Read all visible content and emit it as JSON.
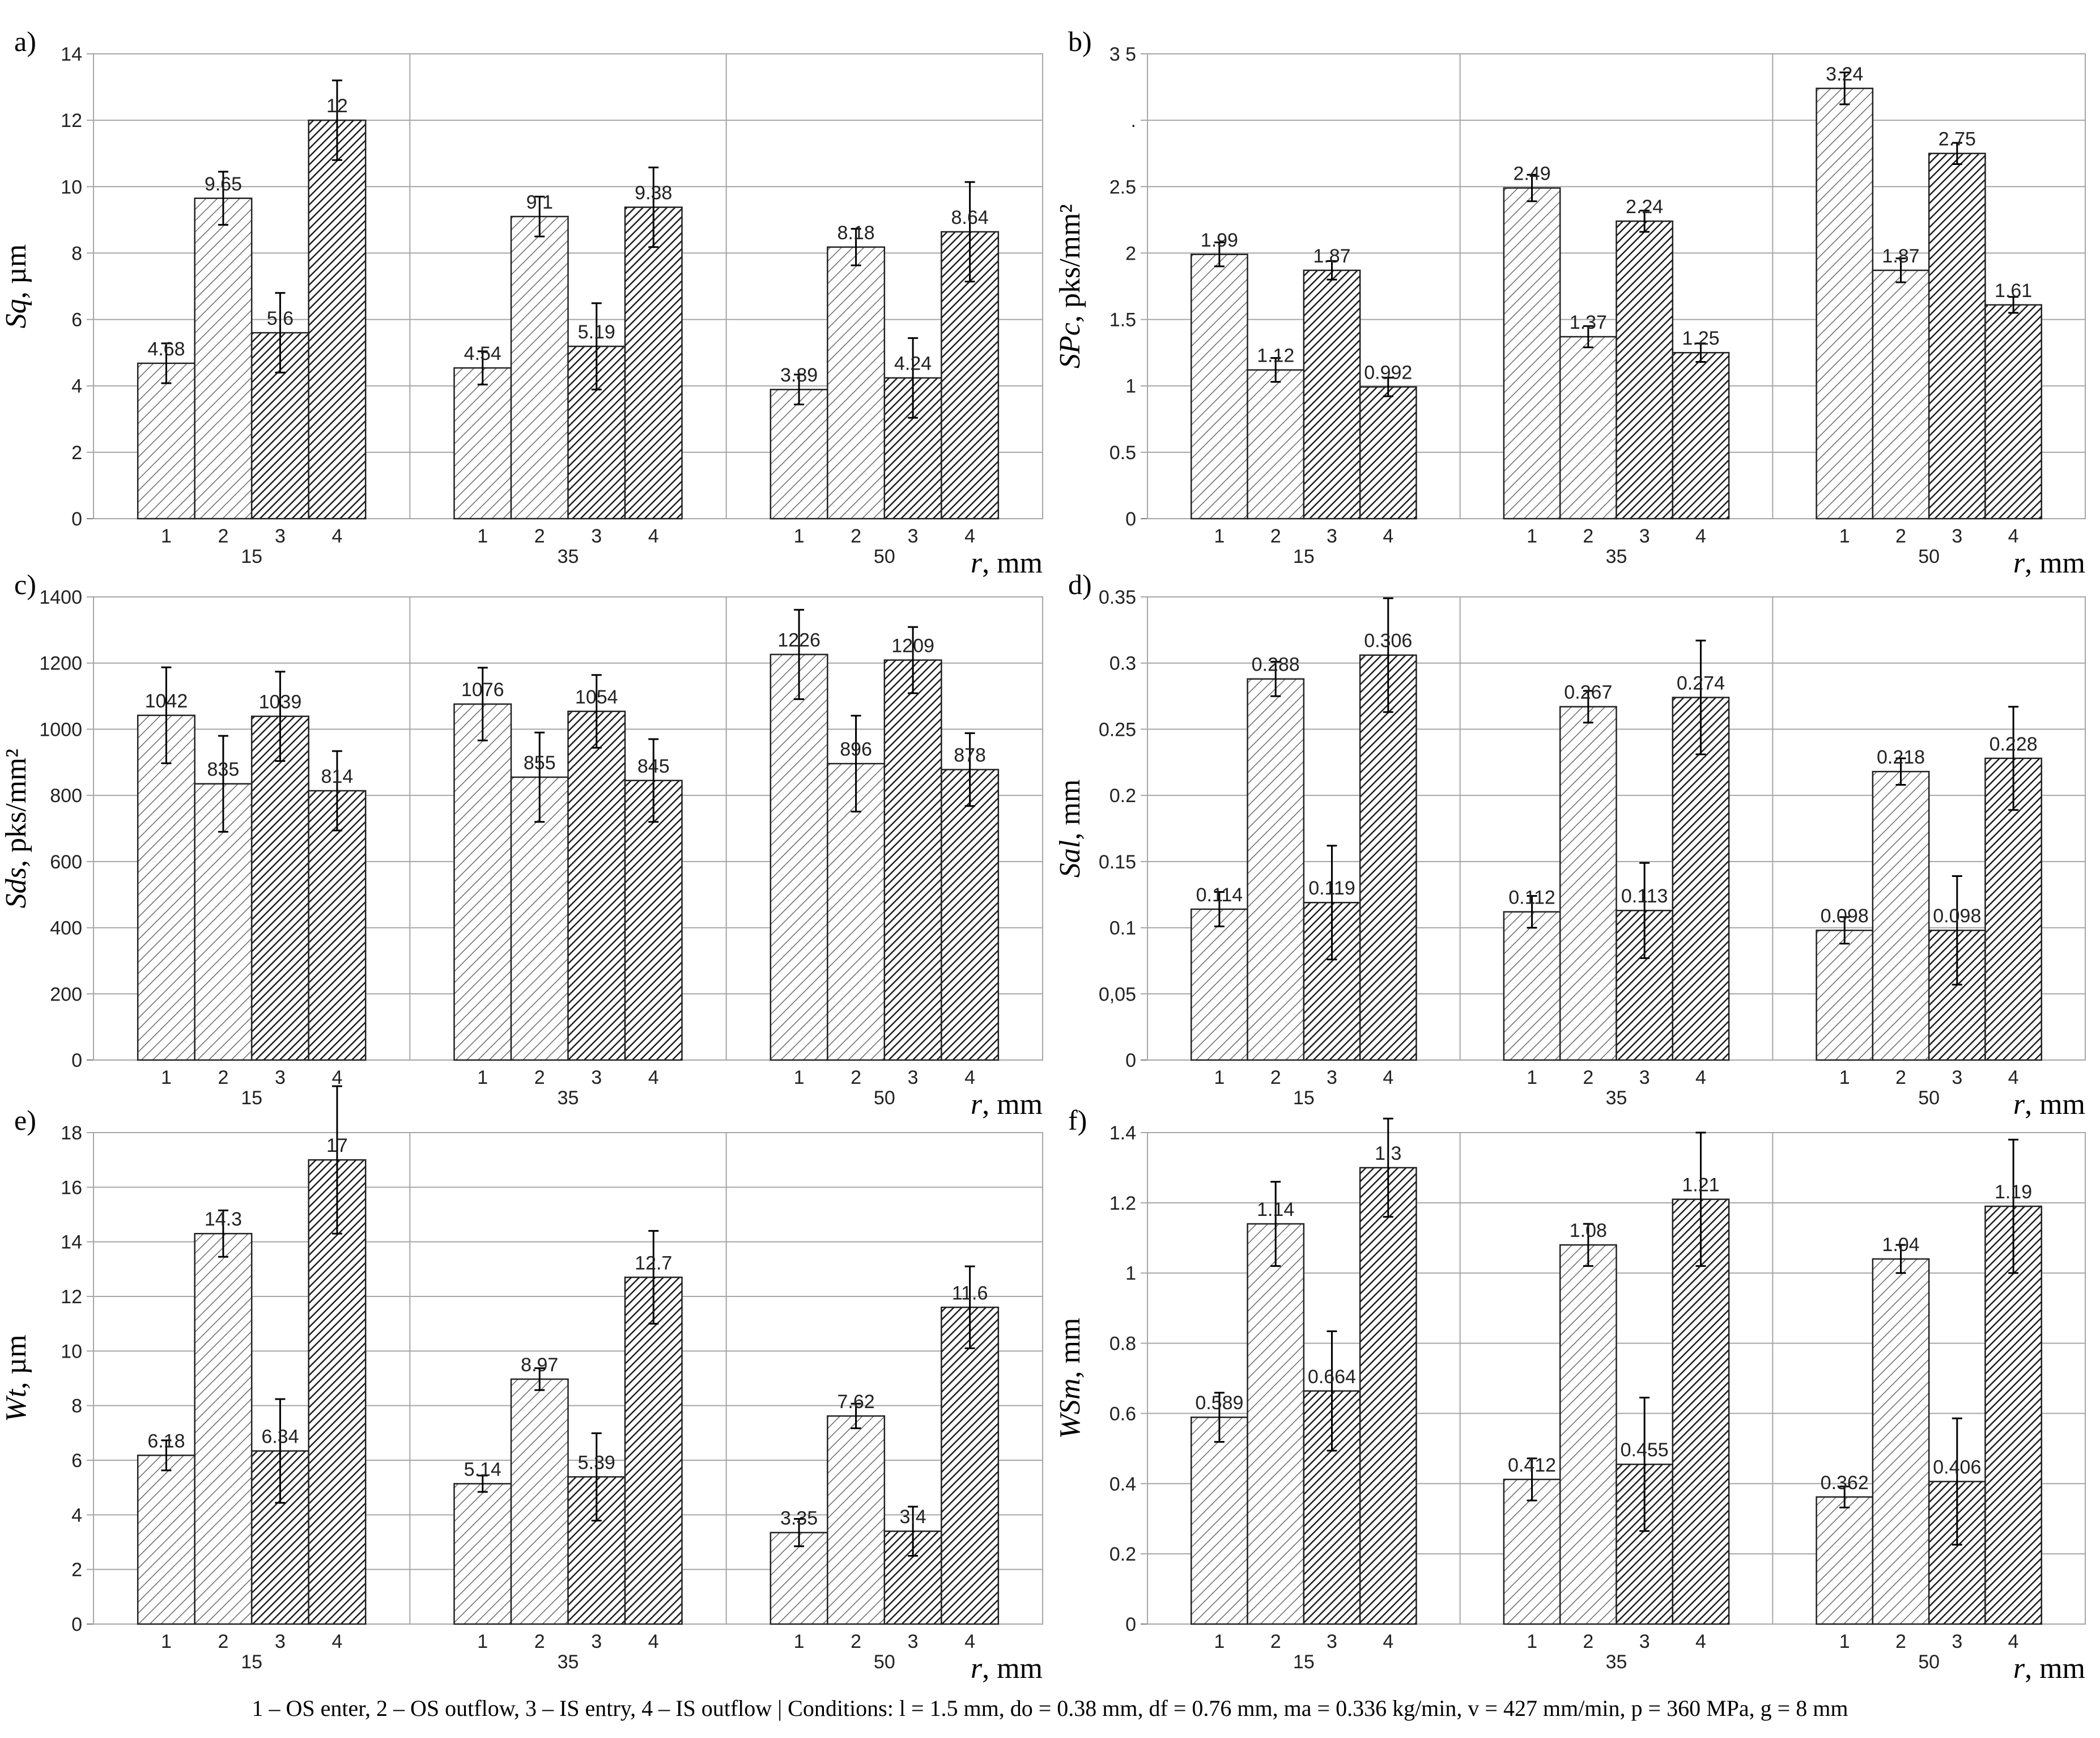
{
  "caption": "1 – OS enter, 2 – OS outflow, 3 – IS entry, 4 – IS outflow | Conditions: l = 1.5 mm, do = 0.38 mm, df = 0.76 mm, ma = 0.336 kg/min,  v = 427 mm/min, p = 360 MPa, g = 8 mm",
  "colors": {
    "bar_fill": "#ffffff",
    "bar_stroke": "#222222",
    "grid": "#a6a6a6",
    "axis": "#808080",
    "hatch_light": "#6a6a6a",
    "hatch_dark": "#1e1e1e"
  },
  "chart_data": [
    {
      "panel": "a)",
      "type": "bar",
      "ylabel_italic": "Sq",
      "ylabel_rest": ", µm",
      "xlabel_italic": "r",
      "xlabel_rest": ", mm",
      "groups": [
        "15",
        "35",
        "50"
      ],
      "categories": [
        "1",
        "2",
        "3",
        "4"
      ],
      "yticks": [
        "0",
        "2",
        "4",
        "6",
        "8",
        "10",
        "12",
        "14"
      ],
      "ylim": [
        0,
        14
      ],
      "values": [
        [
          4.68,
          9.65,
          5.6,
          12
        ],
        [
          4.54,
          9.1,
          5.19,
          9.38
        ],
        [
          3.89,
          8.18,
          4.24,
          8.64
        ]
      ],
      "labels": [
        [
          "4.68",
          "9.65",
          "5.6",
          "12"
        ],
        [
          "4.54",
          "9.1",
          "5.19",
          "9.38"
        ],
        [
          "3.89",
          "8.18",
          "4.24",
          "8.64"
        ]
      ],
      "errors": [
        [
          0.6,
          0.8,
          1.2,
          1.2
        ],
        [
          0.5,
          0.6,
          1.3,
          1.2
        ],
        [
          0.45,
          0.55,
          1.2,
          1.5
        ]
      ]
    },
    {
      "panel": "b)",
      "type": "bar",
      "ylabel_italic": "SPc",
      "ylabel_rest": ", pks/mm²",
      "xlabel_italic": "r",
      "xlabel_rest": ", mm",
      "groups": [
        "15",
        "35",
        "50"
      ],
      "categories": [
        "1",
        "2",
        "3",
        "4"
      ],
      "yticks": [
        "0",
        "0.5",
        "1",
        "1.5",
        "2",
        "2.5",
        ".",
        "3 5"
      ],
      "ylim": [
        0,
        3.5
      ],
      "values": [
        [
          1.99,
          1.12,
          1.87,
          0.992
        ],
        [
          2.49,
          1.37,
          2.24,
          1.25
        ],
        [
          3.24,
          1.87,
          2.75,
          1.61
        ]
      ],
      "labels": [
        [
          "1.99",
          "1.12",
          "1.87",
          "0.992"
        ],
        [
          "2.49",
          "1.37",
          "2.24",
          "1.25"
        ],
        [
          "3.24",
          "1.87",
          "2.75",
          "1.61"
        ]
      ],
      "errors": [
        [
          0.09,
          0.09,
          0.07,
          0.07
        ],
        [
          0.1,
          0.08,
          0.08,
          0.07
        ],
        [
          0.12,
          0.09,
          0.08,
          0.06
        ]
      ]
    },
    {
      "panel": "c)",
      "type": "bar",
      "ylabel_italic": "Sds",
      "ylabel_rest": ", pks/mm²",
      "xlabel_italic": "r",
      "xlabel_rest": ", mm",
      "groups": [
        "15",
        "35",
        "50"
      ],
      "categories": [
        "1",
        "2",
        "3",
        "4"
      ],
      "yticks": [
        "0",
        "200",
        "400",
        "600",
        "800",
        "1000",
        "1200",
        "1400"
      ],
      "ylim": [
        0,
        1400
      ],
      "values": [
        [
          1042,
          835,
          1039,
          814
        ],
        [
          1076,
          855,
          1054,
          845
        ],
        [
          1226,
          896,
          1209,
          878
        ]
      ],
      "labels": [
        [
          "1042",
          "835",
          "1039",
          "814"
        ],
        [
          "1076",
          "855",
          "1054",
          "845"
        ],
        [
          "1226",
          "896",
          "1209",
          "878"
        ]
      ],
      "errors": [
        [
          145,
          145,
          135,
          120
        ],
        [
          110,
          135,
          110,
          125
        ],
        [
          135,
          145,
          100,
          110
        ]
      ]
    },
    {
      "panel": "d)",
      "type": "bar",
      "ylabel_italic": "Sal",
      "ylabel_rest": ", mm",
      "xlabel_italic": "r",
      "xlabel_rest": ", mm",
      "groups": [
        "15",
        "35",
        "50"
      ],
      "categories": [
        "1",
        "2",
        "3",
        "4"
      ],
      "yticks": [
        "0",
        "0,05",
        "0.1",
        "0.15",
        "0.2",
        "0.25",
        "0.3",
        "0.35"
      ],
      "ylim": [
        0,
        0.35
      ],
      "values": [
        [
          0.114,
          0.288,
          0.119,
          0.306
        ],
        [
          0.112,
          0.267,
          0.113,
          0.274
        ],
        [
          0.098,
          0.218,
          0.098,
          0.228
        ]
      ],
      "labels": [
        [
          "0.114",
          "0.288",
          "0.119",
          "0.306"
        ],
        [
          "0.112",
          "0.267",
          "0.113",
          "0.274"
        ],
        [
          "0.098",
          "0.218",
          "0.098",
          "0.228"
        ]
      ],
      "errors": [
        [
          0.013,
          0.013,
          0.043,
          0.043
        ],
        [
          0.012,
          0.012,
          0.036,
          0.043
        ],
        [
          0.01,
          0.01,
          0.041,
          0.039
        ]
      ]
    },
    {
      "panel": "e)",
      "type": "bar",
      "ylabel_italic": "Wt",
      "ylabel_rest": ", µm",
      "xlabel_italic": "r",
      "xlabel_rest": ", mm",
      "groups": [
        "15",
        "35",
        "50"
      ],
      "categories": [
        "1",
        "2",
        "3",
        "4"
      ],
      "yticks": [
        "0",
        "2",
        "4",
        "6",
        "8",
        "10",
        "12",
        "14",
        "16",
        "18"
      ],
      "ylim": [
        0,
        18
      ],
      "values": [
        [
          6.18,
          14.3,
          6.34,
          17
        ],
        [
          5.14,
          8.97,
          5.39,
          12.7
        ],
        [
          3.35,
          7.62,
          3.4,
          11.6
        ]
      ],
      "labels": [
        [
          "6.18",
          "14.3",
          "6.34",
          "17"
        ],
        [
          "5.14",
          "8.97",
          "5.39",
          "12.7"
        ],
        [
          "3.35",
          "7.62",
          "3.4",
          "11.6"
        ]
      ],
      "errors": [
        [
          0.55,
          0.85,
          1.9,
          2.7
        ],
        [
          0.3,
          0.4,
          1.6,
          1.7
        ],
        [
          0.5,
          0.45,
          0.9,
          1.5
        ]
      ]
    },
    {
      "panel": "f)",
      "type": "bar",
      "ylabel_italic": "WSm",
      "ylabel_rest": ", mm",
      "xlabel_italic": "r",
      "xlabel_rest": ", mm",
      "groups": [
        "15",
        "35",
        "50"
      ],
      "categories": [
        "1",
        "2",
        "3",
        "4"
      ],
      "yticks": [
        "0",
        "0.2",
        "0.4",
        "0.6",
        "0.8",
        "1",
        "1.2",
        "1.4"
      ],
      "ylim": [
        0,
        1.4
      ],
      "values": [
        [
          0.589,
          1.14,
          0.664,
          1.3
        ],
        [
          0.412,
          1.08,
          0.455,
          1.21
        ],
        [
          0.362,
          1.04,
          0.406,
          1.19
        ]
      ],
      "labels": [
        [
          "0.589",
          "1.14",
          "0.664",
          "1.3"
        ],
        [
          "0.412",
          "1.08",
          "0.455",
          "1.21"
        ],
        [
          "0.362",
          "1.04",
          "0.406",
          "1.19"
        ]
      ],
      "errors": [
        [
          0.07,
          0.12,
          0.17,
          0.14
        ],
        [
          0.06,
          0.06,
          0.19,
          0.19
        ],
        [
          0.03,
          0.04,
          0.18,
          0.19
        ]
      ]
    }
  ]
}
